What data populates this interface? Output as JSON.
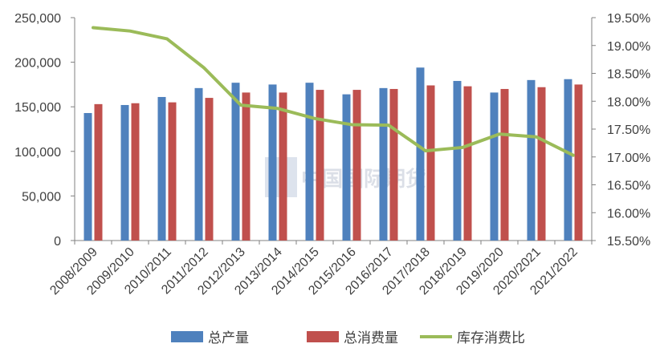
{
  "chart_data": {
    "type": "bar",
    "categories": [
      "2008/2009",
      "2009/2010",
      "2010/2011",
      "2011/2012",
      "2012/2013",
      "2013/2014",
      "2014/2015",
      "2015/2016",
      "2016/2017",
      "2017/2018",
      "2018/2019",
      "2019/2020",
      "2020/2021",
      "2021/2022"
    ],
    "series": [
      {
        "name": "总产量",
        "type": "bar",
        "axis": "left",
        "color": "#4F81BD",
        "values": [
          143000,
          152000,
          161000,
          171000,
          177000,
          175000,
          177000,
          164000,
          171000,
          194000,
          179000,
          166000,
          180000,
          181000
        ]
      },
      {
        "name": "总消费量",
        "type": "bar",
        "axis": "left",
        "color": "#C0504D",
        "values": [
          153000,
          154000,
          155000,
          160000,
          166000,
          166000,
          169000,
          169000,
          170000,
          174000,
          173000,
          170000,
          172000,
          175000
        ]
      },
      {
        "name": "库存消费比",
        "type": "line",
        "axis": "right",
        "color": "#9BBB59",
        "values": [
          19.32,
          19.26,
          19.12,
          18.6,
          17.93,
          17.87,
          17.69,
          17.58,
          17.57,
          17.11,
          17.17,
          17.41,
          17.36,
          17.03
        ]
      }
    ],
    "y_left": {
      "min": 0,
      "max": 250000,
      "ticks": [
        "0",
        "50,000",
        "100,000",
        "150,000",
        "200,000",
        "250,000"
      ]
    },
    "y_right": {
      "min": 15.5,
      "max": 19.5,
      "ticks": [
        "15.50%",
        "16.00%",
        "16.50%",
        "17.00%",
        "17.50%",
        "18.00%",
        "18.50%",
        "19.00%",
        "19.50%"
      ]
    },
    "legend": {
      "placement": "bottom"
    },
    "grid": false
  },
  "watermark": {
    "text": "中国国际期货"
  }
}
